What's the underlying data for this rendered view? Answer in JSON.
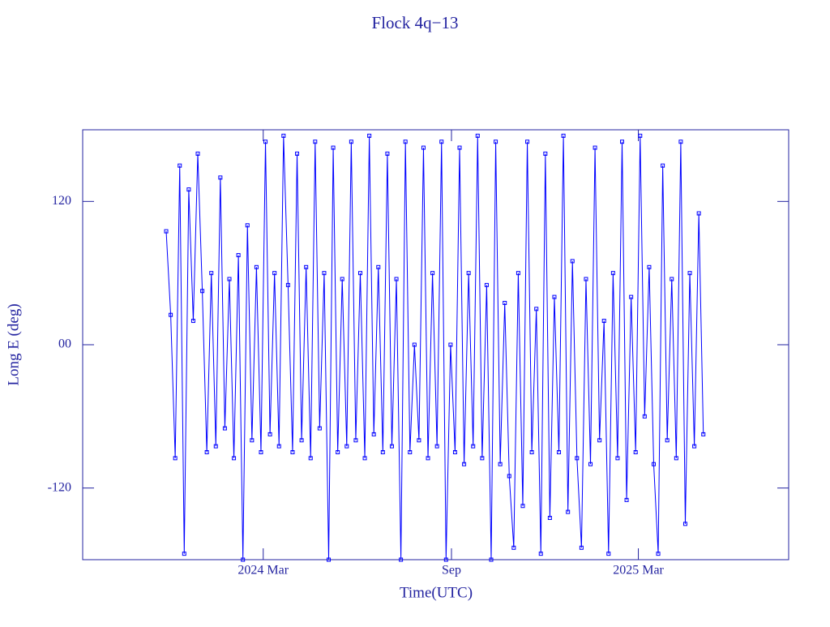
{
  "chart_data": {
    "type": "line",
    "title": "Flock 4q−13",
    "x_label": "Time(UTC)",
    "y_label": "Long E (deg)",
    "color": "#0000ff",
    "values": [
      95,
      25,
      -95,
      150,
      -175,
      130,
      20,
      160,
      45,
      -90,
      60,
      -85,
      140,
      -70,
      55,
      -95,
      75,
      -180,
      100,
      -80,
      65,
      -90,
      170,
      -75,
      60,
      -85,
      175,
      50,
      -90,
      160,
      -80,
      65,
      -95,
      170,
      -70,
      60,
      -180,
      165,
      -90,
      55,
      -85,
      170,
      -80,
      60,
      -95,
      175,
      -75,
      65,
      -90,
      160,
      -85,
      55,
      -180,
      170,
      -90,
      0,
      -80,
      165,
      -95,
      60,
      -85,
      170,
      -180,
      0,
      -90,
      165,
      -100,
      60,
      -85,
      175,
      -95,
      50,
      -180,
      170,
      -100,
      35,
      -110,
      -170,
      60,
      -135,
      170,
      -90,
      30,
      -175,
      160,
      -145,
      40,
      -90,
      175,
      -140,
      70,
      -95,
      -170,
      55,
      -100,
      165,
      -80,
      20,
      -175,
      60,
      -95,
      170,
      -130,
      40,
      -90,
      175,
      -60,
      65,
      -100,
      -175,
      150,
      -80,
      55,
      -95,
      170,
      -150,
      60,
      -85,
      110,
      -75
    ],
    "xlim": [
      -18.5,
      137.9
    ],
    "xticks": [
      {
        "value": 21.5,
        "label": "2024 Mar"
      },
      {
        "value": 63.2,
        "label": "Sep"
      },
      {
        "value": 104.6,
        "label": "2025 Mar"
      }
    ],
    "ylim": [
      -180,
      180
    ],
    "yticks": [
      -120,
      {
        "value": 0,
        "label": "00"
      },
      120
    ]
  }
}
